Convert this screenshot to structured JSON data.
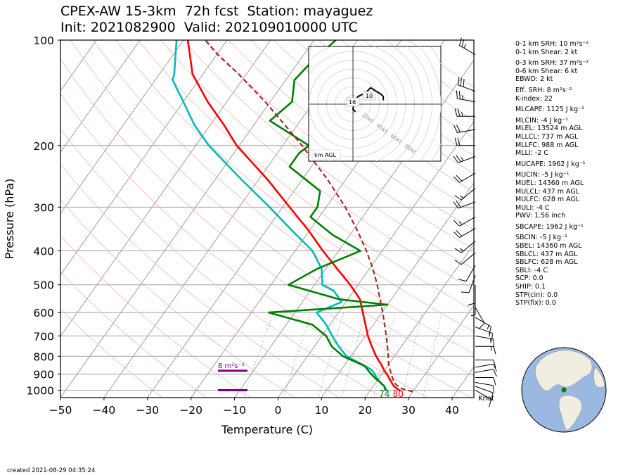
{
  "title": {
    "line1": "CPEX-AW 15-3km  72h fcst  Station: mayaguez",
    "line2": "Init: 2021082900  Valid: 202109010000 UTC"
  },
  "chart_data": {
    "type": "line",
    "subtype": "skew-T log-P",
    "xlabel": "Temperature (C)",
    "ylabel": "Pressure (hPa)",
    "xlim": [
      -50,
      45
    ],
    "ylim": [
      1050,
      100
    ],
    "yscale": "log",
    "x_ticks": [
      "−50",
      "−40",
      "−30",
      "−20",
      "−10",
      "0",
      "10",
      "20",
      "30",
      "40"
    ],
    "y_ticks": [
      100,
      200,
      300,
      400,
      500,
      600,
      700,
      800,
      900,
      1000
    ],
    "grid": true,
    "series": [
      {
        "key": "temperature",
        "color": "#ff0000",
        "p": [
          1005,
          975,
          950,
          925,
          900,
          875,
          850,
          800,
          750,
          700,
          650,
          600,
          550,
          500,
          450,
          400,
          350,
          300,
          250,
          200,
          175,
          150,
          125,
          100
        ],
        "t": [
          27.0,
          24.8,
          23.6,
          22.4,
          21.2,
          19.8,
          18.6,
          15.8,
          13.2,
          10.6,
          8.2,
          5.6,
          2.8,
          -1.8,
          -7.4,
          -13.6,
          -20.2,
          -28.4,
          -38.0,
          -50.6,
          -56.8,
          -64.4,
          -72.4,
          -79.0
        ]
      },
      {
        "key": "dewpoint",
        "color": "#00bbbb",
        "p": [
          1005,
          975,
          950,
          925,
          900,
          875,
          850,
          800,
          750,
          700,
          650,
          600,
          560,
          520,
          500,
          450,
          400,
          350,
          300,
          250,
          200,
          175,
          150,
          130,
          125,
          100
        ],
        "t": [
          24.0,
          22.6,
          21.0,
          19.6,
          18.4,
          17.0,
          14.6,
          9.0,
          5.6,
          2.4,
          -0.8,
          -5.0,
          -1.0,
          -4.6,
          -8.2,
          -11.0,
          -16.0,
          -24.0,
          -33.0,
          -44.0,
          -57.0,
          -63.6,
          -70.0,
          -76.0,
          -76.6,
          -81.6
        ]
      },
      {
        "key": "wetbulb",
        "color": "#008000",
        "p": [
          1005,
          975,
          950,
          925,
          900,
          880,
          860,
          850,
          800,
          750,
          700,
          650,
          600,
          570,
          550,
          500,
          450,
          400,
          360,
          320,
          300,
          270,
          230,
          210,
          200,
          170,
          150,
          130,
          115,
          100
        ],
        "t": [
          23.6,
          22.6,
          21.0,
          19.2,
          17.6,
          16.4,
          15.2,
          14.4,
          8.2,
          4.0,
          1.0,
          -4.0,
          -16.0,
          10.0,
          -2.0,
          -16.0,
          -12.0,
          -5.0,
          -14.0,
          -22.0,
          -22.0,
          -24.0,
          -35.0,
          -35.0,
          -34.0,
          -47.0,
          -45.0,
          -48.0,
          -47.0,
          -45.0
        ]
      },
      {
        "key": "parcel",
        "color": "#a52a2a",
        "dash": "dashed",
        "p": [
          1010,
          990,
          970,
          950,
          925,
          900,
          875,
          850,
          800,
          750,
          700,
          650,
          600,
          550,
          500,
          450,
          400,
          350,
          300,
          250,
          200,
          175,
          150,
          125,
          110,
          100
        ],
        "t": [
          30.0,
          27.0,
          25.4,
          24.2,
          23.2,
          22.2,
          21.2,
          20.2,
          18.6,
          16.8,
          14.8,
          12.6,
          10.2,
          7.4,
          4.4,
          0.8,
          -3.6,
          -9.0,
          -15.6,
          -24.2,
          -35.6,
          -42.8,
          -51.2,
          -61.8,
          -69.8,
          -75.0
        ]
      }
    ],
    "surface_labels": {
      "dewpoint": "74",
      "temperature": "80"
    },
    "srh_label": "8 m²s⁻²",
    "hodograph": {
      "ring_labels": [
        "20kt",
        "40kt",
        "60kt",
        "80kt"
      ],
      "point_labels": [
        "16",
        "10"
      ],
      "corner_label": "km AGL",
      "trace_kt": [
        [
          2,
          -6
        ],
        [
          0,
          -4
        ],
        [
          1,
          2
        ],
        [
          4,
          6
        ],
        [
          10,
          9
        ],
        [
          14,
          13
        ],
        [
          17,
          11
        ],
        [
          22,
          8
        ],
        [
          24,
          6
        ],
        [
          24,
          3
        ]
      ]
    },
    "wind_barbs": {
      "unit_label": "Knot",
      "pressures": [
        110,
        140,
        150,
        165,
        180,
        200,
        215,
        240,
        265,
        290,
        320,
        345,
        375,
        405,
        440,
        470,
        500,
        540,
        580,
        620,
        660,
        700,
        750,
        820,
        860,
        890,
        920,
        950,
        975,
        1000
      ],
      "speed_kt": [
        25,
        30,
        25,
        25,
        20,
        20,
        25,
        20,
        15,
        20,
        15,
        20,
        15,
        10,
        10,
        10,
        10,
        5,
        10,
        15,
        15,
        15,
        15,
        10,
        10,
        10,
        10,
        10,
        10,
        10
      ],
      "dir_deg": [
        300,
        290,
        280,
        270,
        260,
        270,
        250,
        240,
        230,
        250,
        240,
        240,
        230,
        230,
        210,
        200,
        180,
        180,
        150,
        120,
        110,
        100,
        90,
        90,
        80,
        80,
        90,
        100,
        110,
        120
      ]
    }
  },
  "stats": [
    {
      "label": "0-1 km SRH: 10 m²s⁻²"
    },
    {
      "label": "0-1 km Shear: 2 kt"
    },
    {
      "label": "0-3 km SRH: 37 m²s⁻²",
      "gap": true
    },
    {
      "label": "0-6 km Shear: 6 kt"
    },
    {
      "label": "EBWD: 2 kt"
    },
    {
      "label": "Eff. SRH: 8 m²s⁻²",
      "gap": true
    },
    {
      "label": "K-index: 22"
    },
    {
      "label": "MLCAPE: 1125 J kg⁻¹",
      "gap": true
    },
    {
      "label": "MLCIN: -4 J kg⁻¹",
      "gap": true
    },
    {
      "label": "MLEL: 13524 m AGL"
    },
    {
      "label": "MLLCL: 737 m AGL"
    },
    {
      "label": "MLLFC: 988 m AGL"
    },
    {
      "label": "MLLI: -2 C"
    },
    {
      "label": "MUCAPE: 1962 J kg⁻¹",
      "gap": true
    },
    {
      "label": "MUCIN: -5 J kg⁻¹",
      "gap": true
    },
    {
      "label": "MUEL: 14360 m AGL"
    },
    {
      "label": "MULCL: 437 m AGL"
    },
    {
      "label": "MULFC: 628 m AGL"
    },
    {
      "label": "MULI: -4 C"
    },
    {
      "label": "PWV: 1.56 inch"
    },
    {
      "label": "SBCAPE: 1962 J kg⁻¹",
      "gap": true
    },
    {
      "label": "SBCIN: -5 J kg⁻¹",
      "gap": true
    },
    {
      "label": "SBEL: 14360 m AGL"
    },
    {
      "label": "SBLCL: 437 m AGL"
    },
    {
      "label": "SBLFC: 628 m AGL"
    },
    {
      "label": "SBLI: -4 C"
    },
    {
      "label": "SCP: 0.0"
    },
    {
      "label": "SHIP: 0.1"
    },
    {
      "label": "STP(cin): 0.0"
    },
    {
      "label": "STP(fix): 0.0"
    }
  ],
  "created": "created 2021-08-29 04:35:24",
  "colors": {
    "ocean": "#9bb8e0",
    "land": "#efeee0",
    "station": "#008000",
    "isotherm": "#a0a0a0",
    "dry_adiabat": "#f4a0a0",
    "srh_bar": "#800080"
  }
}
